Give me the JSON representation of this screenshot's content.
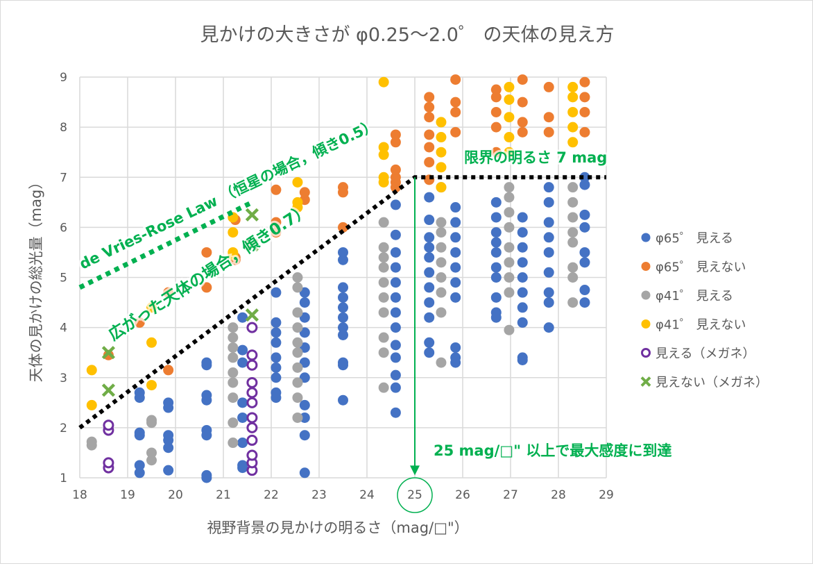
{
  "chart_data": {
    "type": "scatter",
    "title": "見かけの大きさが φ0.25〜2.0゜ の天体の見え方",
    "xlabel": "視野背景の見かけの明るさ（mag/□\"）",
    "ylabel": "天体の見かけの総光量（mag）",
    "xlim": [
      18,
      29
    ],
    "ylim": [
      1,
      9
    ],
    "xticks": [
      "18",
      "19",
      "20",
      "21",
      "22",
      "23",
      "24",
      "25",
      "26",
      "27",
      "28",
      "29"
    ],
    "yticks": [
      "1",
      "2",
      "3",
      "4",
      "5",
      "6",
      "7",
      "8",
      "9"
    ],
    "grid": true,
    "legend_placement": "right",
    "series": [
      {
        "name": "φ65゜ 見える",
        "color": "#4472c4",
        "marker": "filled-circle",
        "points": [
          [
            19.25,
            [
              1.1,
              1.25,
              1.85,
              1.9,
              2.6,
              2.7
            ]
          ],
          [
            19.85,
            [
              1.15,
              1.6,
              1.75,
              1.85,
              2.4,
              2.5
            ]
          ],
          [
            20.65,
            [
              1.0,
              1.05,
              1.85,
              1.95,
              2.55,
              2.65,
              3.25,
              3.3
            ]
          ],
          [
            21.4,
            [
              1.2,
              1.25,
              1.7,
              2.2,
              2.5,
              3.3,
              3.55,
              4.2
            ]
          ],
          [
            22.1,
            [
              2.6,
              2.7,
              3.0,
              3.2,
              3.4,
              3.7,
              3.9,
              4.1,
              4.7
            ]
          ],
          [
            22.7,
            [
              1.1,
              1.85,
              2.2,
              2.45,
              3.0,
              3.3,
              3.6,
              3.9,
              4.2,
              4.5,
              4.7
            ]
          ],
          [
            23.5,
            [
              2.55,
              3.25,
              3.3,
              3.85,
              4.0,
              4.2,
              4.4,
              4.6,
              4.8,
              5.35,
              5.5
            ]
          ],
          [
            24.6,
            [
              2.3,
              2.8,
              3.05,
              3.4,
              3.65,
              4.0,
              4.3,
              4.6,
              4.9,
              5.2,
              5.5,
              5.85,
              6.45
            ]
          ],
          [
            25.3,
            [
              3.5,
              3.7,
              4.2,
              4.5,
              4.8,
              5.1,
              5.4,
              5.6,
              5.8,
              6.15,
              6.6
            ]
          ],
          [
            25.85,
            [
              3.3,
              3.4,
              3.6,
              4.6,
              4.9,
              5.2,
              5.5,
              5.8,
              6.1,
              6.4
            ]
          ],
          [
            26.7,
            [
              4.2,
              4.3,
              4.6,
              5.0,
              5.2,
              5.5,
              5.7,
              5.9,
              6.2,
              6.5
            ]
          ],
          [
            27.25,
            [
              3.35,
              3.4,
              4.1,
              4.4,
              4.7,
              5.0,
              5.3,
              5.6,
              5.9,
              6.2
            ]
          ],
          [
            27.8,
            [
              4.0,
              4.5,
              4.7,
              5.1,
              5.5,
              5.8,
              6.1,
              6.5,
              6.8
            ]
          ],
          [
            28.55,
            [
              4.5,
              4.75,
              5.3,
              5.5,
              6.0,
              6.25,
              6.85,
              7.0
            ]
          ]
        ]
      },
      {
        "name": "φ65゜ 見えない",
        "color": "#ed7d31",
        "marker": "filled-circle",
        "points": [
          [
            18.6,
            [
              3.45
            ]
          ],
          [
            19.25,
            [
              4.1
            ]
          ],
          [
            19.85,
            [
              3.15,
              4.7
            ]
          ],
          [
            20.65,
            [
              4.8,
              5.5
            ]
          ],
          [
            21.25,
            [
              5.35,
              5.4,
              6.15
            ]
          ],
          [
            22.1,
            [
              5.9,
              6.1,
              6.75
            ]
          ],
          [
            22.7,
            [
              6.55,
              6.7
            ]
          ],
          [
            23.5,
            [
              6.0,
              6.7,
              6.8
            ]
          ],
          [
            24.6,
            [
              6.8,
              6.9,
              7.0,
              7.15,
              7.7,
              7.85
            ]
          ],
          [
            25.3,
            [
              6.95,
              7.3,
              7.6,
              7.85,
              8.2,
              8.4,
              8.6
            ]
          ],
          [
            25.85,
            [
              7.9,
              8.3,
              8.5,
              8.95
            ]
          ],
          [
            26.7,
            [
              7.5,
              8.0,
              8.3,
              8.6,
              8.75
            ]
          ],
          [
            27.25,
            [
              7.9,
              8.1,
              8.5,
              8.95
            ]
          ],
          [
            27.8,
            [
              7.9,
              8.2,
              8.8
            ]
          ],
          [
            28.55,
            [
              7.9,
              8.3,
              8.6,
              8.9
            ]
          ]
        ]
      },
      {
        "name": "φ41゜ 見える",
        "color": "#a5a5a5",
        "marker": "filled-circle",
        "points": [
          [
            18.25,
            [
              1.65,
              1.72
            ]
          ],
          [
            19.5,
            [
              1.35,
              1.5,
              2.1,
              2.15
            ]
          ],
          [
            21.2,
            [
              1.7,
              2.1,
              2.6,
              2.9,
              3.1,
              3.4,
              3.6,
              3.8,
              4.0
            ]
          ],
          [
            22.55,
            [
              2.2,
              2.6,
              2.9,
              3.2,
              3.5,
              3.7,
              4.0,
              4.3,
              4.8,
              5.0
            ]
          ],
          [
            24.35,
            [
              2.8,
              3.5,
              3.8,
              4.3,
              4.6,
              4.9,
              5.2,
              5.4,
              5.6,
              6.1
            ]
          ],
          [
            25.55,
            [
              3.3,
              4.3,
              4.7,
              5.0,
              5.3,
              5.6,
              5.9,
              6.1,
              6.8
            ]
          ],
          [
            26.97,
            [
              3.95,
              4.7,
              5.0,
              5.3,
              5.6,
              6.0,
              6.3,
              6.6,
              6.8
            ]
          ],
          [
            28.3,
            [
              4.5,
              5.0,
              5.2,
              5.7,
              5.9,
              6.2,
              6.5,
              6.8
            ]
          ]
        ]
      },
      {
        "name": "φ41゜ 見えない",
        "color": "#ffc000",
        "marker": "filled-circle",
        "points": [
          [
            18.25,
            [
              2.45,
              3.15
            ]
          ],
          [
            19.5,
            [
              2.85,
              3.7,
              4.4
            ]
          ],
          [
            21.2,
            [
              5.45,
              5.5,
              5.9,
              6.2
            ]
          ],
          [
            22.55,
            [
              6.4,
              6.5,
              6.9
            ]
          ],
          [
            24.35,
            [
              6.9,
              7.0,
              7.45,
              7.6,
              8.9
            ]
          ],
          [
            25.55,
            [
              6.8,
              7.2,
              7.5,
              7.8,
              8.1
            ]
          ],
          [
            26.97,
            [
              7.5,
              7.8,
              8.2,
              8.55,
              8.8
            ]
          ],
          [
            28.3,
            [
              7.7,
              8.0,
              8.3,
              8.6,
              8.8
            ]
          ]
        ]
      },
      {
        "name": "見える（メガネ）",
        "color": "#7030a0",
        "marker": "open-circle",
        "points": [
          [
            18.6,
            [
              1.2,
              1.3,
              1.95,
              2.05
            ]
          ],
          [
            21.6,
            [
              1.15,
              1.3,
              1.45,
              1.75,
              2.0,
              2.2,
              2.5,
              2.7,
              2.9,
              3.25,
              3.45,
              4.0
            ]
          ]
        ]
      },
      {
        "name": "見えない（メガネ）",
        "color": "#70ad47",
        "marker": "x",
        "points": [
          [
            18.6,
            [
              3.5,
              2.75
            ]
          ],
          [
            21.6,
            [
              4.25,
              5.65,
              6.25
            ]
          ]
        ]
      }
    ],
    "lines": [
      {
        "label": "de Vries-Rose Law （恒星の場合，傾き0.5）",
        "color": "#00b050",
        "style": "dotted",
        "points": [
          [
            18,
            4.8
          ],
          [
            21.6,
            6.5
          ]
        ]
      },
      {
        "label": "広がった天体の場合，傾き0.7）",
        "color": "#000000",
        "style": "dotted",
        "points": [
          [
            18,
            2.0
          ],
          [
            25,
            7.0
          ],
          [
            29,
            7.0
          ]
        ]
      }
    ],
    "annotations": [
      {
        "text": "限界の明るさ 7 mag",
        "color": "#00b050"
      },
      {
        "text": "25 mag/□\" 以上で最大感度に到達",
        "color": "#00b050"
      }
    ],
    "arrow": {
      "from": [
        25,
        7.0
      ],
      "to": [
        25,
        1.05
      ],
      "color": "#00b050"
    },
    "highlight_tick": "25"
  }
}
